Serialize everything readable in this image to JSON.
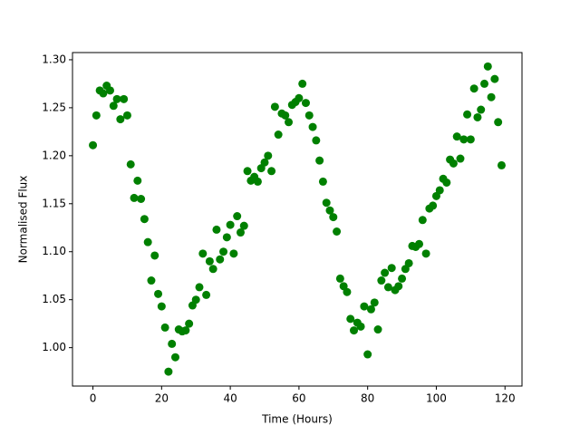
{
  "chart_data": {
    "type": "scatter",
    "xlabel": "Time (Hours)",
    "ylabel": "Normalised Flux",
    "series": [
      {
        "color": "#008000",
        "x": [
          0,
          1,
          2,
          3,
          4,
          5,
          6,
          7,
          8,
          9,
          10,
          11,
          12,
          13,
          14,
          15,
          16,
          17,
          18,
          19,
          20,
          21,
          22,
          23,
          24,
          25,
          26,
          27,
          28,
          29,
          30,
          31,
          32,
          33,
          34,
          35,
          36,
          37,
          38,
          39,
          40,
          41,
          42,
          43,
          44,
          45,
          46,
          47,
          48,
          49,
          50,
          51,
          52,
          53,
          54,
          55,
          56,
          57,
          58,
          59,
          60,
          61,
          62,
          63,
          64,
          65,
          66,
          67,
          68,
          69,
          70,
          71,
          72,
          73,
          74,
          75,
          76,
          77,
          78,
          79,
          80,
          81,
          82,
          83,
          84,
          85,
          86,
          87,
          88,
          89,
          90,
          91,
          92,
          93,
          94,
          95,
          96,
          97,
          98,
          99,
          100,
          101,
          102,
          103,
          104,
          105,
          106,
          107,
          108,
          109,
          110,
          111,
          112,
          113,
          114,
          115,
          116,
          117,
          118,
          119
        ],
        "values": [
          1.211,
          1.242,
          1.268,
          1.265,
          1.273,
          1.268,
          1.252,
          1.259,
          1.238,
          1.259,
          1.242,
          1.191,
          1.156,
          1.174,
          1.155,
          1.134,
          1.11,
          1.07,
          1.096,
          1.056,
          1.043,
          1.021,
          0.975,
          1.004,
          0.99,
          1.019,
          1.017,
          1.018,
          1.025,
          1.044,
          1.05,
          1.063,
          1.098,
          1.055,
          1.09,
          1.082,
          1.123,
          1.092,
          1.1,
          1.115,
          1.128,
          1.098,
          1.137,
          1.12,
          1.127,
          1.184,
          1.174,
          1.178,
          1.173,
          1.187,
          1.193,
          1.2,
          1.184,
          1.251,
          1.222,
          1.244,
          1.242,
          1.235,
          1.253,
          1.256,
          1.26,
          1.275,
          1.255,
          1.242,
          1.23,
          1.216,
          1.195,
          1.173,
          1.151,
          1.143,
          1.136,
          1.121,
          1.072,
          1.064,
          1.058,
          1.03,
          1.018,
          1.026,
          1.022,
          1.043,
          0.993,
          1.04,
          1.047,
          1.019,
          1.07,
          1.078,
          1.063,
          1.083,
          1.06,
          1.064,
          1.072,
          1.082,
          1.088,
          1.106,
          1.105,
          1.108,
          1.133,
          1.098,
          1.145,
          1.148,
          1.158,
          1.164,
          1.176,
          1.172,
          1.196,
          1.192,
          1.22,
          1.197,
          1.217,
          1.243,
          1.217,
          1.27,
          1.24,
          1.248,
          1.275,
          1.293,
          1.261,
          1.28,
          1.235,
          1.19
        ]
      }
    ],
    "xlim": [
      -5.95,
      124.95
    ],
    "xticks": [
      0,
      20,
      40,
      60,
      80,
      100,
      120
    ],
    "ylim": [
      0.96,
      1.3075
    ],
    "yticks": [
      {
        "value": 1.0,
        "label": "1.00"
      },
      1.05,
      {
        "value": 1.1,
        "label": "1.10"
      },
      1.15,
      {
        "value": 1.2,
        "label": "1.20"
      },
      1.25,
      {
        "value": 1.3,
        "label": "1.30"
      }
    ],
    "grid": false
  }
}
